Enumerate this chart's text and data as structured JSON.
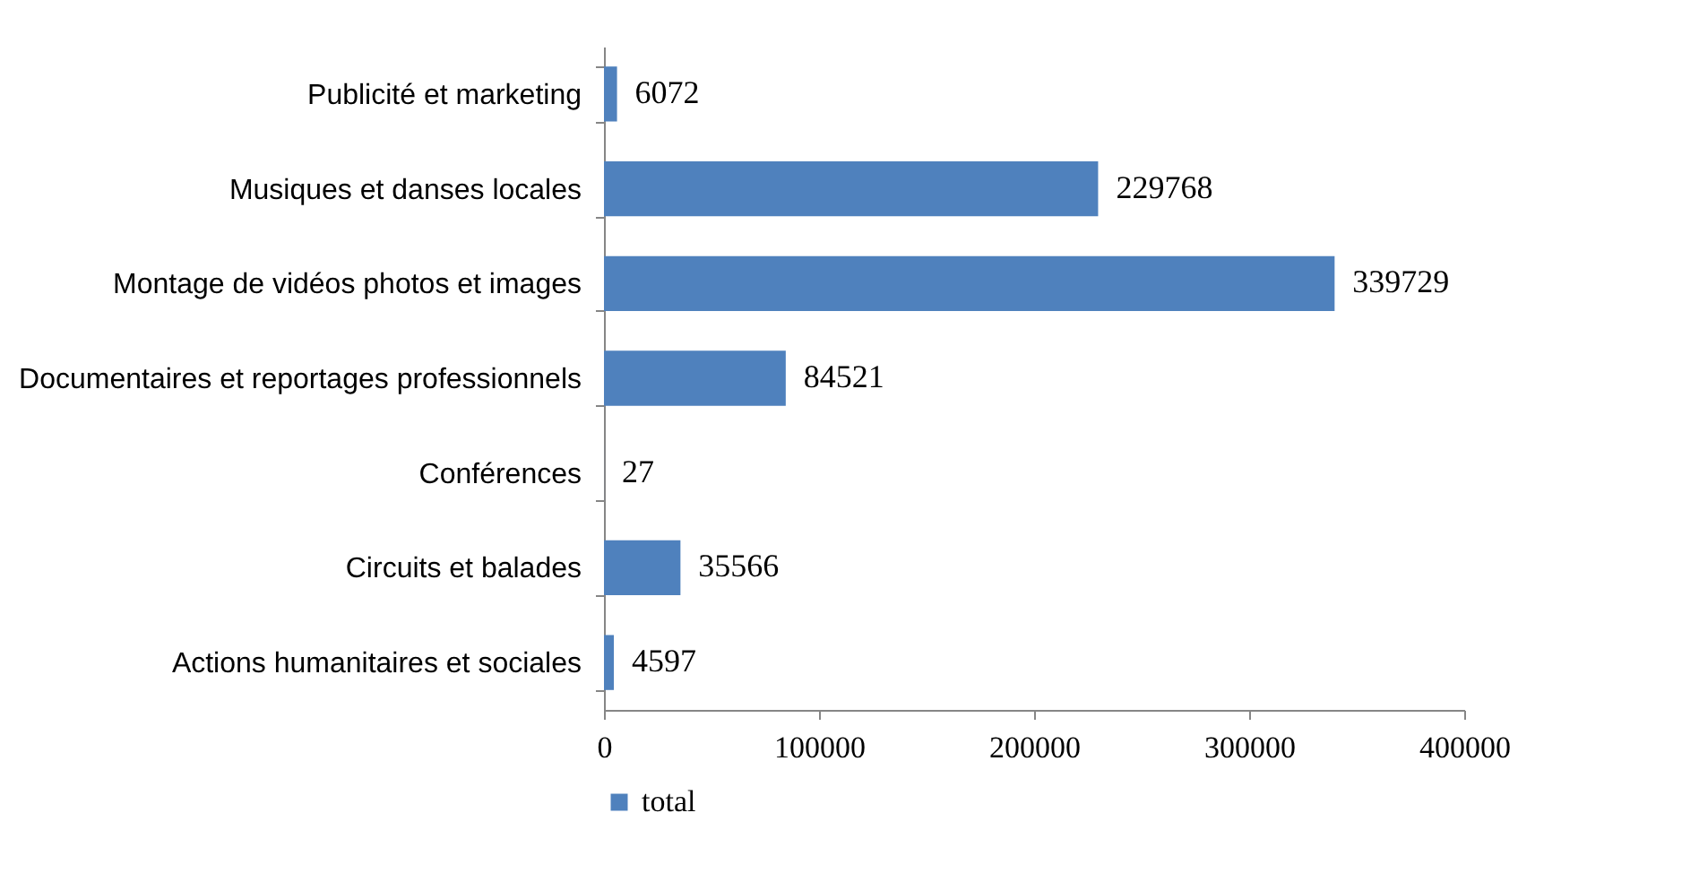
{
  "chart_data": {
    "type": "bar",
    "orientation": "horizontal",
    "categories": [
      "Publicité et marketing",
      "Musiques et danses locales",
      "Montage de vidéos photos et images",
      "Documentaires et reportages professionnels",
      "Conférences",
      "Circuits et balades",
      "Actions humanitaires et sociales"
    ],
    "series": [
      {
        "name": "total",
        "color": "#4f81bd",
        "values": [
          6072,
          229768,
          339729,
          84521,
          27,
          35566,
          4597
        ]
      }
    ],
    "xlim": [
      0,
      400000
    ],
    "xticks": [
      0,
      100000,
      200000,
      300000,
      400000
    ],
    "grid": false,
    "legend": "bottom",
    "data_labels": true
  }
}
